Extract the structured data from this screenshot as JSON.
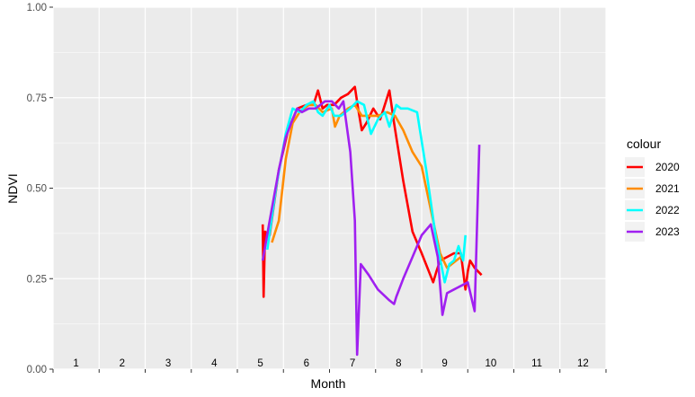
{
  "chart_data": {
    "type": "line",
    "xlabel": "Month",
    "ylabel": "NDVI",
    "ylim": [
      0,
      1
    ],
    "y_ticks": [
      "0.00",
      "0.25",
      "0.50",
      "0.75",
      "1.00"
    ],
    "y_tick_values": [
      0,
      0.25,
      0.5,
      0.75,
      1.0
    ],
    "xlim": [
      0.5,
      12.5
    ],
    "x_tick_labels": [
      "1",
      "2",
      "3",
      "4",
      "5",
      "6",
      "7",
      "8",
      "9",
      "10",
      "11",
      "12"
    ],
    "x_tick_label_positions": [
      1,
      2,
      3,
      4,
      5,
      6,
      7,
      8,
      9,
      10,
      11,
      12
    ],
    "x_tick_marks": [
      0.5,
      1.5,
      2.5,
      3.5,
      4.5,
      5.5,
      6.5,
      7.5,
      8.5,
      9.5,
      10.5,
      11.5,
      12.5
    ],
    "grid": true,
    "background": "#EBEBEB",
    "legend": {
      "title": "colour",
      "placement": "right"
    },
    "series": [
      {
        "name": "2020",
        "color": "#FF0000",
        "points": [
          [
            5.05,
            0.4
          ],
          [
            5.07,
            0.2
          ],
          [
            5.1,
            0.38
          ],
          [
            5.2,
            0.37
          ],
          [
            5.4,
            0.55
          ],
          [
            5.6,
            0.66
          ],
          [
            5.8,
            0.72
          ],
          [
            6.0,
            0.73
          ],
          [
            6.15,
            0.73
          ],
          [
            6.25,
            0.77
          ],
          [
            6.35,
            0.72
          ],
          [
            6.45,
            0.73
          ],
          [
            6.6,
            0.73
          ],
          [
            6.75,
            0.75
          ],
          [
            6.9,
            0.76
          ],
          [
            7.05,
            0.78
          ],
          [
            7.12,
            0.72
          ],
          [
            7.2,
            0.66
          ],
          [
            7.3,
            0.68
          ],
          [
            7.45,
            0.72
          ],
          [
            7.6,
            0.69
          ],
          [
            7.8,
            0.77
          ],
          [
            7.9,
            0.68
          ],
          [
            8.1,
            0.52
          ],
          [
            8.3,
            0.38
          ],
          [
            8.5,
            0.32
          ],
          [
            8.75,
            0.24
          ],
          [
            8.82,
            0.27
          ],
          [
            8.9,
            0.3
          ],
          [
            9.05,
            0.31
          ],
          [
            9.2,
            0.32
          ],
          [
            9.35,
            0.32
          ],
          [
            9.45,
            0.22
          ],
          [
            9.5,
            0.27
          ],
          [
            9.55,
            0.3
          ],
          [
            9.65,
            0.28
          ],
          [
            9.8,
            0.26
          ]
        ]
      },
      {
        "name": "2021",
        "color": "#FF8C00",
        "points": [
          [
            5.25,
            0.35
          ],
          [
            5.4,
            0.41
          ],
          [
            5.55,
            0.58
          ],
          [
            5.7,
            0.68
          ],
          [
            5.85,
            0.71
          ],
          [
            6.05,
            0.73
          ],
          [
            6.2,
            0.73
          ],
          [
            6.35,
            0.71
          ],
          [
            6.55,
            0.72
          ],
          [
            6.62,
            0.67
          ],
          [
            6.72,
            0.7
          ],
          [
            6.9,
            0.72
          ],
          [
            7.05,
            0.73
          ],
          [
            7.2,
            0.7
          ],
          [
            7.4,
            0.7
          ],
          [
            7.55,
            0.7
          ],
          [
            7.75,
            0.71
          ],
          [
            7.92,
            0.7
          ],
          [
            8.1,
            0.66
          ],
          [
            8.3,
            0.6
          ],
          [
            8.5,
            0.56
          ],
          [
            8.7,
            0.44
          ],
          [
            8.9,
            0.32
          ],
          [
            9.05,
            0.28
          ],
          [
            9.15,
            0.29
          ],
          [
            9.25,
            0.3
          ],
          [
            9.35,
            0.31
          ]
        ]
      },
      {
        "name": "2022",
        "color": "#00FFFF",
        "points": [
          [
            5.15,
            0.33
          ],
          [
            5.35,
            0.51
          ],
          [
            5.55,
            0.65
          ],
          [
            5.7,
            0.72
          ],
          [
            5.85,
            0.71
          ],
          [
            6.0,
            0.73
          ],
          [
            6.15,
            0.74
          ],
          [
            6.25,
            0.71
          ],
          [
            6.35,
            0.7
          ],
          [
            6.5,
            0.73
          ],
          [
            6.6,
            0.7
          ],
          [
            6.75,
            0.7
          ],
          [
            6.95,
            0.72
          ],
          [
            7.1,
            0.74
          ],
          [
            7.25,
            0.73
          ],
          [
            7.4,
            0.65
          ],
          [
            7.55,
            0.69
          ],
          [
            7.7,
            0.71
          ],
          [
            7.8,
            0.67
          ],
          [
            7.95,
            0.73
          ],
          [
            8.05,
            0.72
          ],
          [
            8.2,
            0.72
          ],
          [
            8.4,
            0.71
          ],
          [
            8.6,
            0.55
          ],
          [
            8.8,
            0.37
          ],
          [
            9.0,
            0.24
          ],
          [
            9.1,
            0.29
          ],
          [
            9.2,
            0.3
          ],
          [
            9.3,
            0.34
          ],
          [
            9.4,
            0.3
          ],
          [
            9.45,
            0.37
          ]
        ]
      },
      {
        "name": "2023",
        "color": "#A020F0",
        "points": [
          [
            5.05,
            0.3
          ],
          [
            5.2,
            0.41
          ],
          [
            5.4,
            0.55
          ],
          [
            5.55,
            0.64
          ],
          [
            5.7,
            0.69
          ],
          [
            5.8,
            0.72
          ],
          [
            5.9,
            0.71
          ],
          [
            6.05,
            0.72
          ],
          [
            6.2,
            0.72
          ],
          [
            6.4,
            0.74
          ],
          [
            6.55,
            0.74
          ],
          [
            6.7,
            0.72
          ],
          [
            6.8,
            0.74
          ],
          [
            6.95,
            0.6
          ],
          [
            7.05,
            0.41
          ],
          [
            7.1,
            0.04
          ],
          [
            7.18,
            0.29
          ],
          [
            7.35,
            0.26
          ],
          [
            7.55,
            0.22
          ],
          [
            7.8,
            0.19
          ],
          [
            7.9,
            0.18
          ],
          [
            7.95,
            0.2
          ],
          [
            8.1,
            0.25
          ],
          [
            8.3,
            0.31
          ],
          [
            8.5,
            0.37
          ],
          [
            8.7,
            0.4
          ],
          [
            8.85,
            0.31
          ],
          [
            8.95,
            0.15
          ],
          [
            9.05,
            0.21
          ],
          [
            9.2,
            0.22
          ],
          [
            9.35,
            0.23
          ],
          [
            9.5,
            0.24
          ],
          [
            9.65,
            0.16
          ],
          [
            9.75,
            0.62
          ]
        ]
      }
    ]
  }
}
